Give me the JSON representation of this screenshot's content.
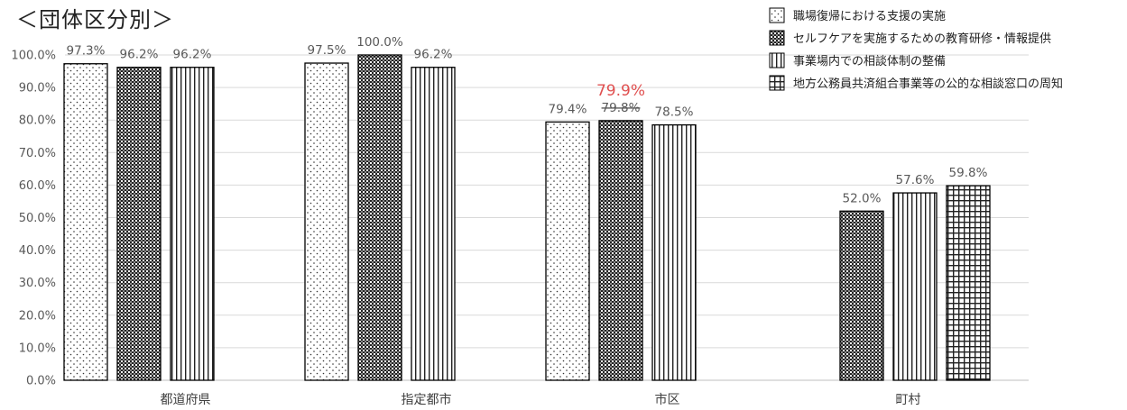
{
  "chart_data": {
    "type": "bar",
    "title": "＜団体区分別＞",
    "categories": [
      "都道府県",
      "指定都市",
      "市区",
      "町村"
    ],
    "series": [
      {
        "name": "職場復帰における支援の実施",
        "pattern": "dots",
        "values": [
          97.3,
          97.5,
          79.4,
          null
        ],
        "labels": [
          "97.3%",
          "97.5%",
          "79.4%",
          ""
        ]
      },
      {
        "name": "セルフケアを実施するための教育研修・情報提供",
        "pattern": "dense-grid",
        "values": [
          96.2,
          100.0,
          79.8,
          52.0
        ],
        "labels": [
          "96.2%",
          "100.0%",
          "79.8%",
          "52.0%"
        ]
      },
      {
        "name": "事業場内での相談体制の整備",
        "pattern": "vertical-lines",
        "values": [
          96.2,
          96.2,
          78.5,
          57.6
        ],
        "labels": [
          "96.2%",
          "96.2%",
          "78.5%",
          "57.6%"
        ]
      },
      {
        "name": "地方公務員共済組合事業等の公的な相談窓口の周知",
        "pattern": "grid",
        "values": [
          null,
          null,
          null,
          59.8
        ],
        "labels": [
          "",
          "",
          "",
          "59.8%"
        ]
      }
    ],
    "annotations": [
      {
        "text": "79.9%",
        "category": "市区",
        "color": "#e05050"
      }
    ],
    "ylim": [
      0,
      100
    ],
    "yticks": [
      "0.0%",
      "10.0%",
      "20.0%",
      "30.0%",
      "40.0%",
      "50.0%",
      "60.0%",
      "70.0%",
      "80.0%",
      "90.0%",
      "100.0%"
    ],
    "grid": true,
    "legend_position": "top-right"
  }
}
